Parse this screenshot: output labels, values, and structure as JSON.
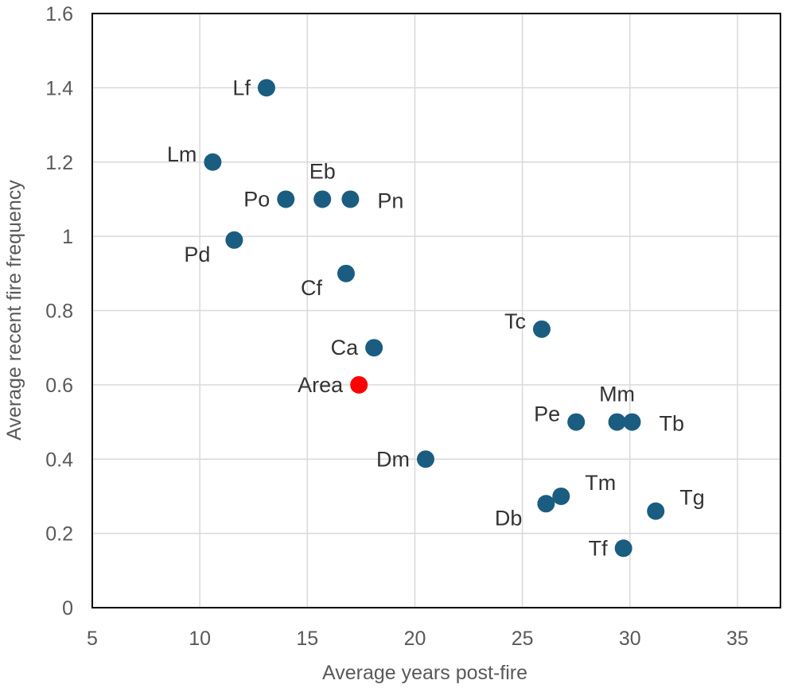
{
  "chart_data": {
    "type": "scatter",
    "title": "",
    "xlabel": "Average years post-fire",
    "ylabel": "Average recent fire frequency",
    "xlim": [
      5,
      37
    ],
    "ylim": [
      0,
      1.6
    ],
    "xticks": [
      "5",
      "10",
      "15",
      "20",
      "25",
      "30",
      "35"
    ],
    "yticks": [
      "0",
      "0.2",
      "0.4",
      "0.6",
      "0.8",
      "1",
      "1.2",
      "1.4",
      "1.6"
    ],
    "grid": true,
    "legend": "none",
    "colors": {
      "default": "#1b5d80",
      "highlight": "#ff0000"
    },
    "points": [
      {
        "label": "Lf",
        "x": 13.1,
        "y": 1.4,
        "label_pos": "left"
      },
      {
        "label": "Lm",
        "x": 10.6,
        "y": 1.2,
        "label_pos": "upper-left"
      },
      {
        "label": "Eb",
        "x": 15.7,
        "y": 1.1,
        "label_pos": "above"
      },
      {
        "label": "Po",
        "x": 14.0,
        "y": 1.1,
        "label_pos": "left"
      },
      {
        "label": "Pn",
        "x": 17.0,
        "y": 1.1,
        "label_pos": "right"
      },
      {
        "label": "Pd",
        "x": 11.6,
        "y": 0.99,
        "label_pos": "lower-left"
      },
      {
        "label": "Cf",
        "x": 16.8,
        "y": 0.9,
        "label_pos": "lower-left"
      },
      {
        "label": "Tc",
        "x": 25.9,
        "y": 0.75,
        "label_pos": "upper-left"
      },
      {
        "label": "Ca",
        "x": 18.1,
        "y": 0.7,
        "label_pos": "left"
      },
      {
        "label": "Area",
        "x": 17.4,
        "y": 0.6,
        "label_pos": "left",
        "highlight": true
      },
      {
        "label": "Mm",
        "x": 29.4,
        "y": 0.5,
        "label_pos": "above"
      },
      {
        "label": "Pe",
        "x": 27.5,
        "y": 0.5,
        "label_pos": "upper-left"
      },
      {
        "label": "Tb",
        "x": 30.1,
        "y": 0.5,
        "label_pos": "right"
      },
      {
        "label": "Dm",
        "x": 20.5,
        "y": 0.4,
        "label_pos": "left"
      },
      {
        "label": "Tm",
        "x": 26.8,
        "y": 0.3,
        "label_pos": "upper-right"
      },
      {
        "label": "Db",
        "x": 26.1,
        "y": 0.28,
        "label_pos": "lower-left"
      },
      {
        "label": "Tg",
        "x": 31.2,
        "y": 0.26,
        "label_pos": "upper-right"
      },
      {
        "label": "Tf",
        "x": 29.7,
        "y": 0.16,
        "label_pos": "left"
      }
    ]
  }
}
